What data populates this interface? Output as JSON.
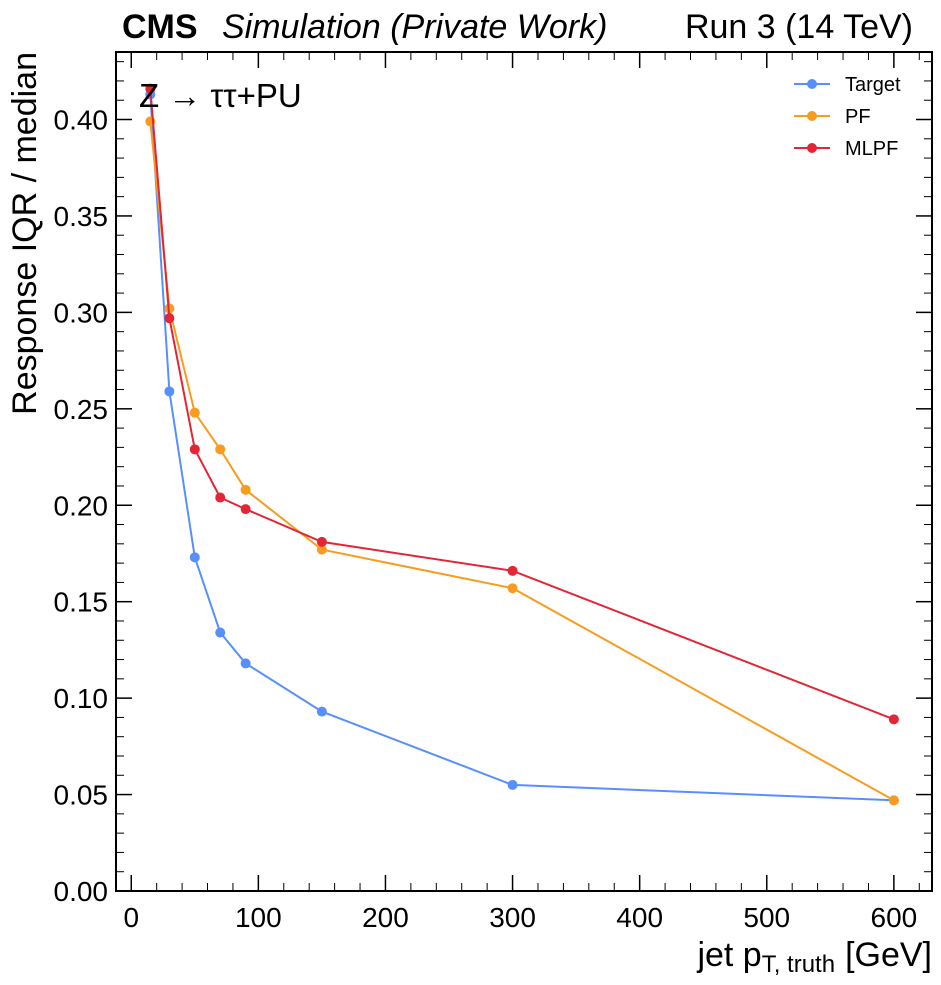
{
  "header": {
    "experiment": "CMS",
    "status": "Simulation (Private Work)",
    "run_label": "Run 3 (14 TeV)"
  },
  "annotation": {
    "process": "Z → ττ+PU"
  },
  "chart_data": {
    "type": "line",
    "title": "",
    "xlabel_main": "jet p",
    "xlabel_sub": "T, truth",
    "xlabel_unit": "[GeV]",
    "ylabel": "Response IQR / median",
    "xlim": [
      -12,
      630
    ],
    "ylim": [
      0.0,
      0.435
    ],
    "xticks": [
      0,
      100,
      200,
      300,
      400,
      500,
      600
    ],
    "xtick_labels": [
      "0",
      "100",
      "200",
      "300",
      "400",
      "500",
      "600"
    ],
    "yticks": [
      0.0,
      0.05,
      0.1,
      0.15,
      0.2,
      0.25,
      0.3,
      0.35,
      0.4
    ],
    "ytick_labels": [
      "0.00",
      "0.05",
      "0.10",
      "0.15",
      "0.20",
      "0.25",
      "0.30",
      "0.35",
      "0.40"
    ],
    "grid": false,
    "legend_position": "top-right",
    "x": [
      15,
      30,
      50,
      70,
      90,
      150,
      300,
      600
    ],
    "series": [
      {
        "name": "Target",
        "color": "#5790fc",
        "values": [
          0.413,
          0.259,
          0.173,
          0.134,
          0.118,
          0.093,
          0.055,
          0.047
        ]
      },
      {
        "name": "PF",
        "color": "#f89c20",
        "values": [
          0.399,
          0.302,
          0.248,
          0.229,
          0.208,
          0.177,
          0.157,
          0.047
        ]
      },
      {
        "name": "MLPF",
        "color": "#e42536",
        "values": [
          0.416,
          0.297,
          0.229,
          0.204,
          0.198,
          0.181,
          0.166,
          0.089
        ]
      }
    ]
  }
}
